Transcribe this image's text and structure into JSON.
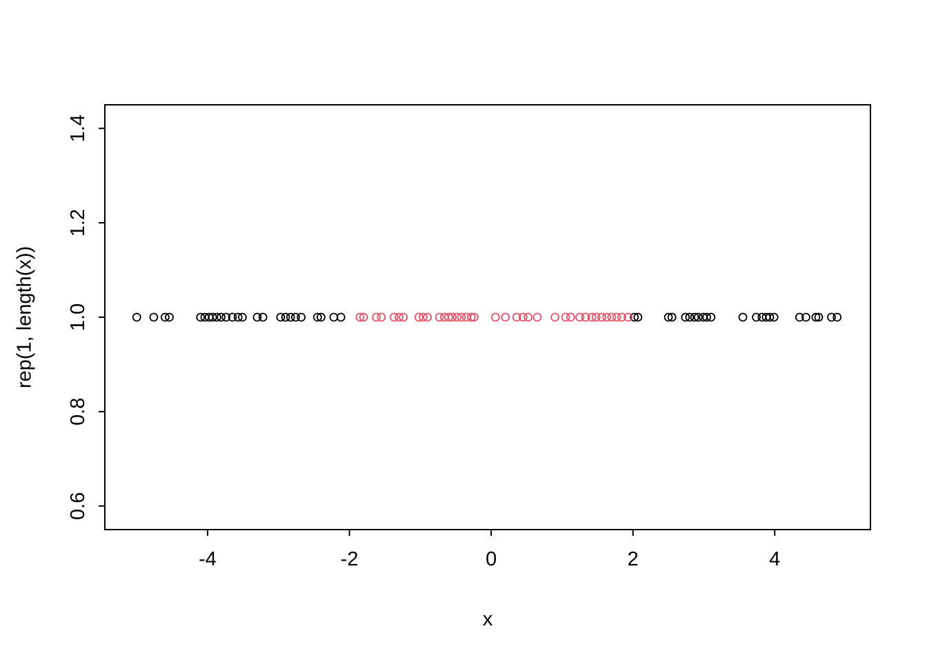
{
  "chart_data": {
    "type": "scatter",
    "title": "",
    "xlabel": "x",
    "ylabel": "rep(1, length(x))",
    "xlim": [
      -5.45,
      5.35
    ],
    "ylim": [
      0.55,
      1.45
    ],
    "xticks": [
      -4,
      -2,
      0,
      2,
      4
    ],
    "xticklabels": [
      "-4",
      "-2",
      "0",
      "2",
      "4"
    ],
    "yticks": [
      0.6,
      0.8,
      1.0,
      1.2,
      1.4
    ],
    "yticklabels": [
      "0.6",
      "0.8",
      "1.0",
      "1.2",
      "1.4"
    ],
    "y_constant": 1,
    "point_style": "open-circle",
    "grid": false,
    "legend": "none",
    "series": [
      {
        "name": "points-outside-interval",
        "color": "#000000",
        "x": [
          -5.0,
          -4.76,
          -4.6,
          -4.54,
          -4.1,
          -4.04,
          -3.98,
          -3.93,
          -3.87,
          -3.81,
          -3.74,
          -3.65,
          -3.57,
          -3.51,
          -3.3,
          -3.22,
          -2.97,
          -2.9,
          -2.83,
          -2.76,
          -2.68,
          -2.45,
          -2.4,
          -2.22,
          -2.12,
          2.02,
          2.07,
          2.5,
          2.55,
          2.74,
          2.8,
          2.87,
          2.92,
          2.99,
          3.04,
          3.1,
          3.55,
          3.74,
          3.82,
          3.88,
          3.93,
          3.99,
          4.35,
          4.44,
          4.58,
          4.62,
          4.8,
          4.88
        ]
      },
      {
        "name": "points-inside-interval",
        "color": "#DF536B",
        "x": [
          -1.85,
          -1.8,
          -1.62,
          -1.55,
          -1.37,
          -1.3,
          -1.24,
          -1.02,
          -0.96,
          -0.9,
          -0.73,
          -0.66,
          -0.6,
          -0.55,
          -0.48,
          -0.42,
          -0.35,
          -0.28,
          -0.24,
          0.06,
          0.2,
          0.36,
          0.45,
          0.52,
          0.65,
          0.9,
          1.05,
          1.12,
          1.25,
          1.33,
          1.42,
          1.48,
          1.56,
          1.63,
          1.7,
          1.77,
          1.84,
          1.93
        ]
      }
    ]
  },
  "figure": {
    "background": "#ffffff",
    "axis_color": "#000000"
  }
}
